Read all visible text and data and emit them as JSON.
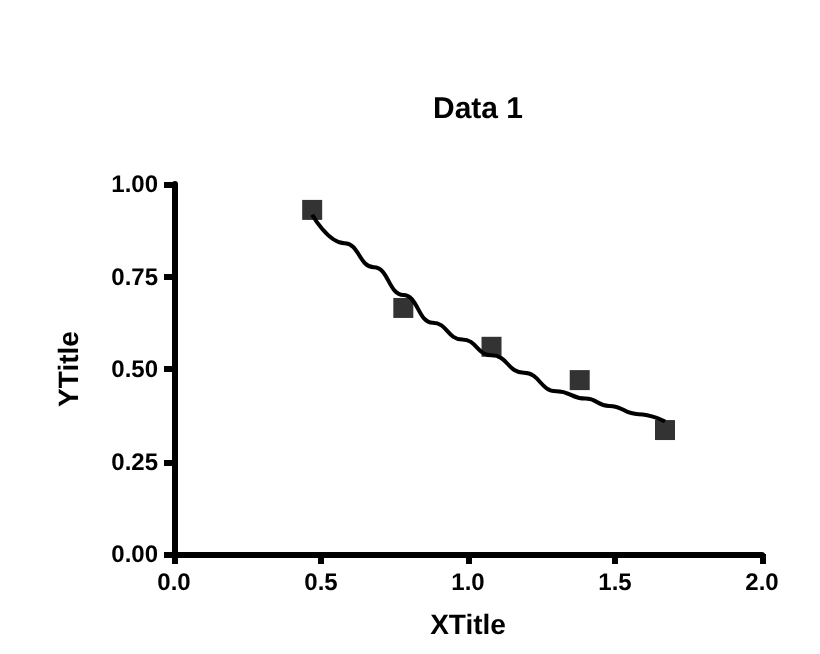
{
  "chart_data": {
    "type": "scatter",
    "title": "Data 1",
    "xlabel": "XTitle",
    "ylabel": "YTitle",
    "grid": false,
    "xlim": [
      0,
      2
    ],
    "xticks": [
      {
        "value": 0,
        "label": "0.0"
      },
      {
        "value": 0.5,
        "label": "0.5"
      },
      {
        "value": 1,
        "label": "1.0"
      },
      {
        "value": 1.5,
        "label": "1.5"
      },
      {
        "value": 2,
        "label": "2.0"
      }
    ],
    "ylim": [
      0,
      1
    ],
    "yticks": [
      {
        "value": 0,
        "label": "0.00"
      },
      {
        "value": 0.25,
        "label": "0.25"
      },
      {
        "value": 0.5,
        "label": "0.50"
      },
      {
        "value": 0.75,
        "label": "0.75"
      },
      {
        "value": 1,
        "label": "1.00"
      }
    ],
    "series": [
      {
        "marker": "square",
        "color": "#000000",
        "x": [
          0.47,
          0.78,
          1.08,
          1.38,
          1.67
        ],
        "values": [
          0.93,
          0.665,
          0.56,
          0.47,
          0.335
        ]
      },
      {
        "type": "line",
        "color": "#000000",
        "line_style": "solid",
        "x": [
          0.47,
          0.58,
          0.68,
          0.78,
          0.88,
          0.98,
          1.08,
          1.19,
          1.3,
          1.4,
          1.48,
          1.58,
          1.67
        ],
        "values": [
          0.917,
          0.84,
          0.775,
          0.7,
          0.625,
          0.58,
          0.537,
          0.49,
          0.44,
          0.42,
          0.4,
          0.378,
          0.358
        ]
      }
    ]
  }
}
